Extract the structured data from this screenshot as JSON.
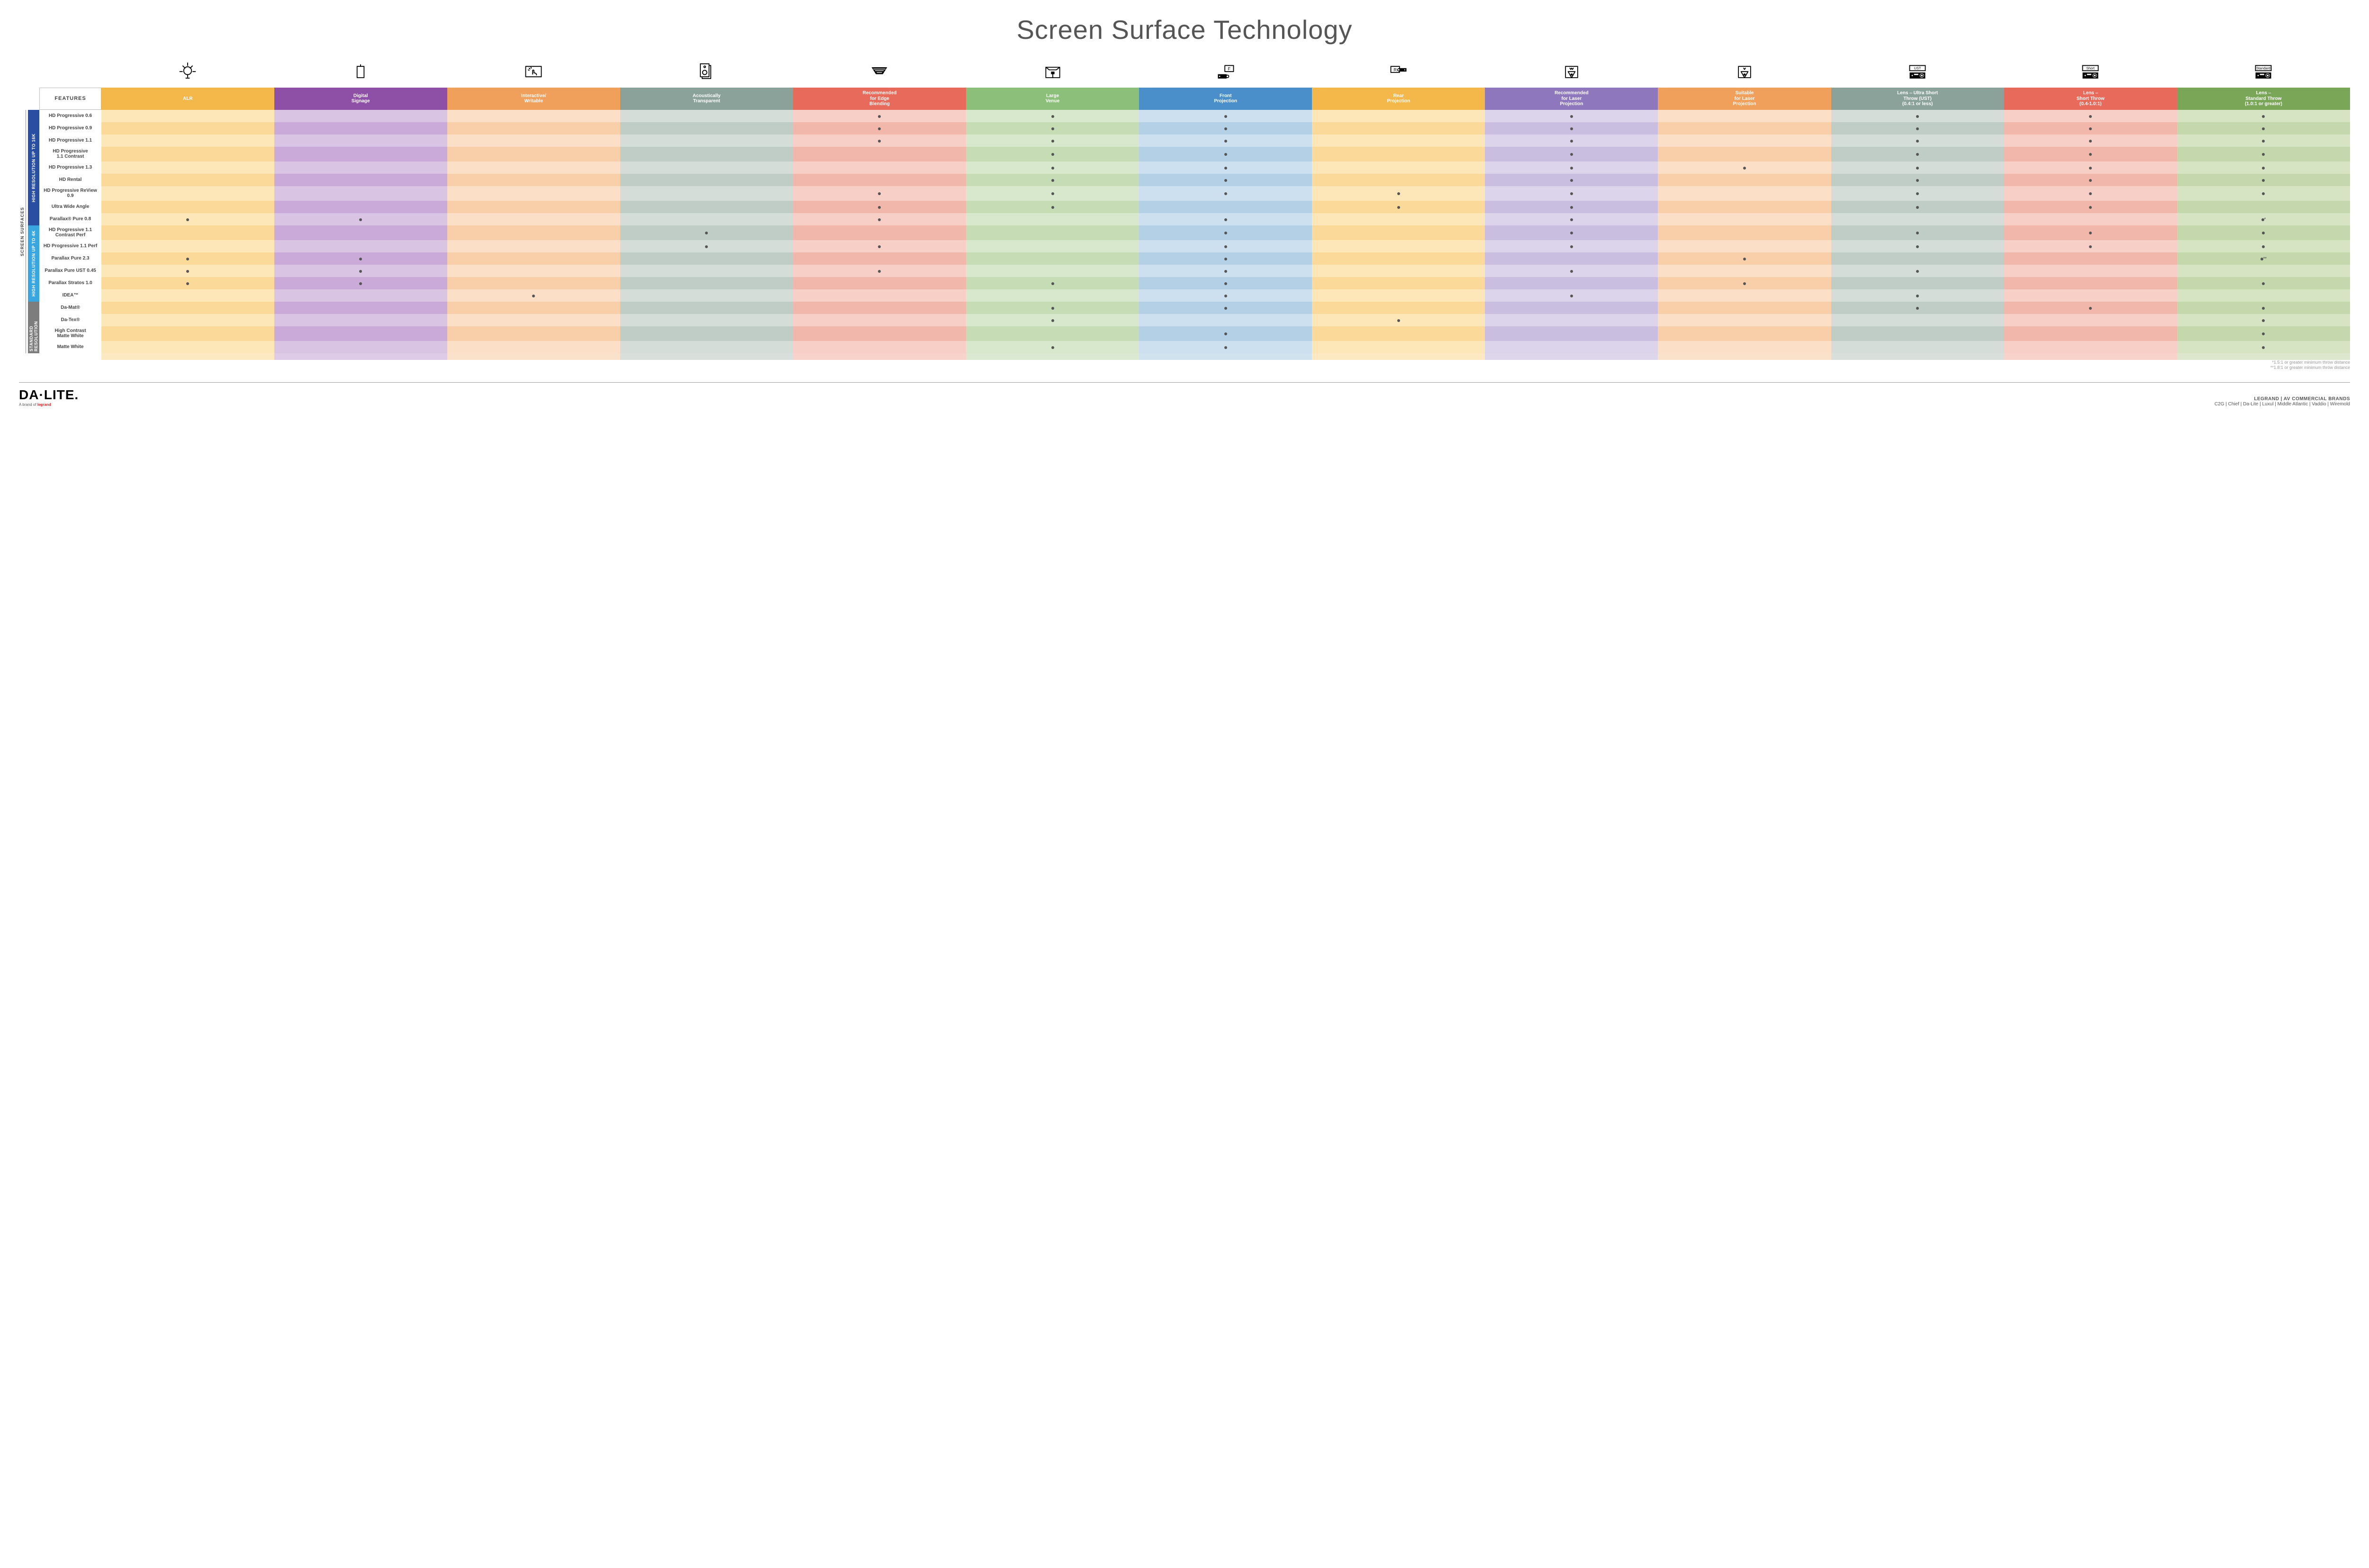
{
  "title": "Screen Surface Technology",
  "featuresLabel": "FEATURES",
  "sideOuter": "SCREEN SURFACES",
  "columns": [
    {
      "id": "alr",
      "label": "ALR",
      "color": "#f3b74a",
      "icon": "bulb"
    },
    {
      "id": "signage",
      "label": "Digital\nSignage",
      "color": "#8e4fa6",
      "icon": "signage"
    },
    {
      "id": "interactive",
      "label": "Interactive/\nWritable",
      "color": "#f0a05a",
      "icon": "touch"
    },
    {
      "id": "acoustic",
      "label": "Acoustically\nTransparent",
      "color": "#8aa29a",
      "icon": "speaker"
    },
    {
      "id": "edge",
      "label": "Recommended\nfor Edge\nBlending",
      "color": "#e86a5a",
      "icon": "blend"
    },
    {
      "id": "venue",
      "label": "Large\nVenue",
      "color": "#8bbf7a",
      "icon": "venue"
    },
    {
      "id": "front",
      "label": "Front\nProjection",
      "color": "#4a8fc9",
      "icon": "front"
    },
    {
      "id": "rear",
      "label": "Rear\nProjection",
      "color": "#f3b74a",
      "icon": "rear"
    },
    {
      "id": "reclaser",
      "label": "Recommended\nfor Laser\nProjection",
      "color": "#8e77bd",
      "icon": "laser3"
    },
    {
      "id": "suitlaser",
      "label": "Suitable\nfor Laser\nProjection",
      "color": "#f0a05a",
      "icon": "laser1"
    },
    {
      "id": "ust",
      "label": "Lens – Ultra Short\nThrow (UST)\n(0.4:1 or less)",
      "color": "#8aa29a",
      "icon": "proj-ust"
    },
    {
      "id": "short",
      "label": "Lens –\nShort Throw\n(0.4-1.0:1)",
      "color": "#e86a5a",
      "icon": "proj-short"
    },
    {
      "id": "std",
      "label": "Lens –\nStandard Throw\n(1.0:1 or greater)",
      "color": "#7aa658",
      "icon": "proj-std"
    }
  ],
  "lightColors": {
    "alr": [
      "#fde6b8",
      "#fbd998"
    ],
    "signage": [
      "#d9c4e3",
      "#c9aad8"
    ],
    "interactive": [
      "#fbe0c7",
      "#f8cfa8"
    ],
    "acoustic": [
      "#d5ddd8",
      "#c0cdc6"
    ],
    "edge": [
      "#f7cfc7",
      "#f2b7ab"
    ],
    "venue": [
      "#d8e8cd",
      "#c5dcb5"
    ],
    "front": [
      "#cde0ef",
      "#b3d0e6"
    ],
    "rear": [
      "#fde6b8",
      "#fbd998"
    ],
    "reclaser": [
      "#dcd4ea",
      "#c9bedf"
    ],
    "suitlaser": [
      "#fbe0c7",
      "#f8cfa8"
    ],
    "ust": [
      "#d5ddd8",
      "#c0cdc6"
    ],
    "short": [
      "#f7cfc7",
      "#f2b7ab"
    ],
    "std": [
      "#d6e4c3",
      "#c5d8ad"
    ]
  },
  "groups": [
    {
      "id": "g16k",
      "label": "HIGH RESOLUTION UP TO 16K",
      "color": "#2a4fa2",
      "rows": 9
    },
    {
      "id": "g4k",
      "label": "HIGH RESOLUTION UP TO 4K",
      "color": "#3aa6e0",
      "rows": 6
    },
    {
      "id": "gstd",
      "label": "STANDARD\nRESOLUTION",
      "color": "#7d7d7d",
      "rows": 4
    }
  ],
  "rows": [
    {
      "label": "HD Progressive 0.6",
      "dots": {
        "edge": "",
        "venue": "",
        "front": "",
        "reclaser": "",
        "ust": "",
        "short": "",
        "std": ""
      }
    },
    {
      "label": "HD Progressive 0.9",
      "dots": {
        "edge": "",
        "venue": "",
        "front": "",
        "reclaser": "",
        "ust": "",
        "short": "",
        "std": ""
      }
    },
    {
      "label": "HD Progressive 1.1",
      "dots": {
        "edge": "",
        "venue": "",
        "front": "",
        "reclaser": "",
        "ust": "",
        "short": "",
        "std": ""
      }
    },
    {
      "label": "HD Progressive\n1.1 Contrast",
      "dots": {
        "venue": "",
        "front": "",
        "reclaser": "",
        "ust": "",
        "short": "",
        "std": ""
      }
    },
    {
      "label": "HD Progressive 1.3",
      "dots": {
        "venue": "",
        "front": "",
        "reclaser": "",
        "suitlaser": "",
        "ust": "",
        "short": "",
        "std": ""
      }
    },
    {
      "label": "HD Rental",
      "dots": {
        "venue": "",
        "front": "",
        "reclaser": "",
        "ust": "",
        "short": "",
        "std": ""
      }
    },
    {
      "label": "HD Progressive ReView 0.9",
      "dots": {
        "edge": "",
        "venue": "",
        "front": "",
        "rear": "",
        "reclaser": "",
        "ust": "",
        "short": "",
        "std": ""
      }
    },
    {
      "label": "Ultra Wide Angle",
      "dots": {
        "edge": "",
        "venue": "",
        "rear": "",
        "reclaser": "",
        "ust": "",
        "short": ""
      }
    },
    {
      "label": "Parallax® Pure 0.8",
      "dots": {
        "alr": "",
        "signage": "",
        "edge": "",
        "front": "",
        "reclaser": "",
        "std": "*"
      }
    },
    {
      "label": "HD Progressive 1.1\nContrast Perf",
      "dots": {
        "acoustic": "",
        "front": "",
        "reclaser": "",
        "ust": "",
        "short": "",
        "std": ""
      }
    },
    {
      "label": "HD Progressive 1.1 Perf",
      "dots": {
        "acoustic": "",
        "edge": "",
        "front": "",
        "reclaser": "",
        "ust": "",
        "short": "",
        "std": ""
      }
    },
    {
      "label": "Parallax Pure 2.3",
      "dots": {
        "alr": "",
        "signage": "",
        "front": "",
        "suitlaser": "",
        "std": "**"
      }
    },
    {
      "label": "Parallax Pure UST 0.45",
      "dots": {
        "alr": "",
        "signage": "",
        "edge": "",
        "front": "",
        "reclaser": "",
        "ust": ""
      }
    },
    {
      "label": "Parallax Stratos 1.0",
      "dots": {
        "alr": "",
        "signage": "",
        "venue": "",
        "front": "",
        "suitlaser": "",
        "std": ""
      }
    },
    {
      "label": "IDEA™",
      "dots": {
        "interactive": "",
        "front": "",
        "reclaser": "",
        "ust": ""
      }
    },
    {
      "label": "Da-Mat®",
      "dots": {
        "venue": "",
        "front": "",
        "ust": "",
        "short": "",
        "std": ""
      }
    },
    {
      "label": "Da-Tex®",
      "dots": {
        "venue": "",
        "rear": "",
        "std": ""
      }
    },
    {
      "label": "High Contrast\nMatte White",
      "dots": {
        "front": "",
        "std": ""
      }
    },
    {
      "label": "Matte White",
      "dots": {
        "venue": "",
        "front": "",
        "std": ""
      }
    }
  ],
  "footnotes": [
    "*1.5:1 or greater minimum throw distance",
    "**1.8:1 or greater minimum throw distance"
  ],
  "footer": {
    "logoMain": "DA·LITE.",
    "logoSub1": "A brand of ",
    "logoSub2": "legrand",
    "rightTop": "LEGRAND | AV COMMERCIAL BRANDS",
    "rightBottom": "C2G  |  Chief  |  Da-Lite  |  Luxul  |  Middle Atlantic  |  Vaddio  |  Wiremold"
  }
}
